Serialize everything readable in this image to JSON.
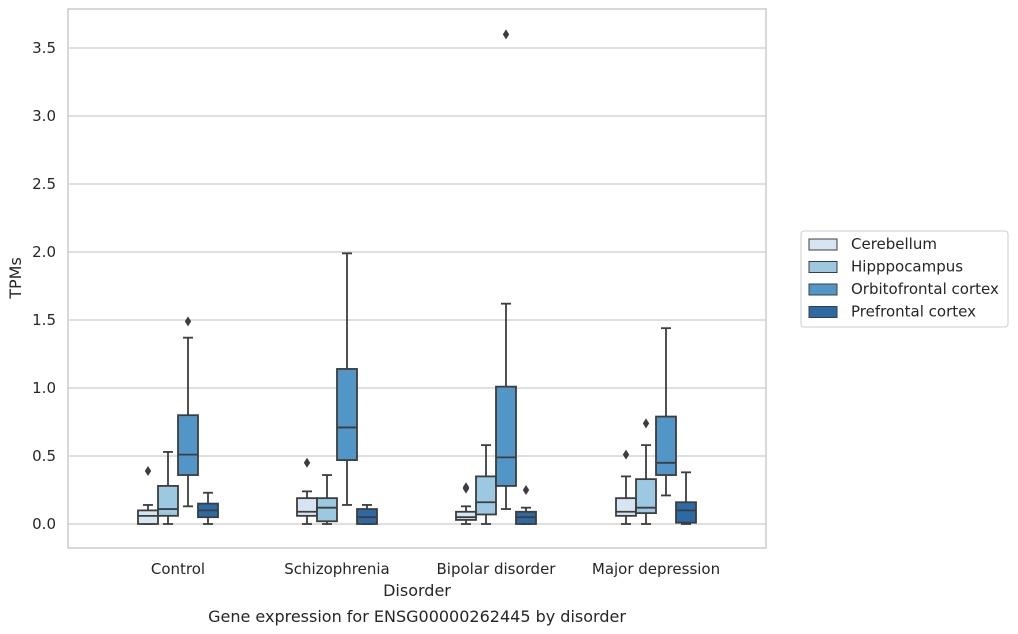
{
  "chart_data": {
    "type": "box",
    "caption": "Gene expression for ENSG00000262445 by disorder",
    "xlabel": "Disorder",
    "ylabel": "TPMs",
    "ylim": [
      -0.17,
      3.78
    ],
    "yticks": [
      "0.0",
      "0.5",
      "1.0",
      "1.5",
      "2.0",
      "2.5",
      "3.0",
      "3.5"
    ],
    "grid": "horizontal",
    "legend_position": "right",
    "categories": [
      "Control",
      "Schizophrenia",
      "Bipolar disorder",
      "Major depression"
    ],
    "series": [
      {
        "name": "Cerebellum",
        "color": "#d6e5f2",
        "boxes": [
          {
            "whisker_low": 0.0,
            "q1": 0.0,
            "median": 0.06,
            "q3": 0.1,
            "whisker_high": 0.14,
            "outliers": [
              0.39
            ]
          },
          {
            "whisker_low": 0.0,
            "q1": 0.06,
            "median": 0.09,
            "q3": 0.19,
            "whisker_high": 0.24,
            "outliers": [
              0.45
            ]
          },
          {
            "whisker_low": 0.0,
            "q1": 0.03,
            "median": 0.05,
            "q3": 0.09,
            "whisker_high": 0.13,
            "outliers": [
              0.26,
              0.27
            ]
          },
          {
            "whisker_low": 0.0,
            "q1": 0.06,
            "median": 0.09,
            "q3": 0.19,
            "whisker_high": 0.35,
            "outliers": [
              0.51
            ]
          }
        ]
      },
      {
        "name": "Hipppocampus",
        "color": "#9cc8e1",
        "boxes": [
          {
            "whisker_low": 0.0,
            "q1": 0.06,
            "median": 0.11,
            "q3": 0.28,
            "whisker_high": 0.53,
            "outliers": []
          },
          {
            "whisker_low": 0.0,
            "q1": 0.02,
            "median": 0.12,
            "q3": 0.19,
            "whisker_high": 0.36,
            "outliers": []
          },
          {
            "whisker_low": 0.0,
            "q1": 0.07,
            "median": 0.16,
            "q3": 0.35,
            "whisker_high": 0.58,
            "outliers": []
          },
          {
            "whisker_low": 0.0,
            "q1": 0.08,
            "median": 0.12,
            "q3": 0.33,
            "whisker_high": 0.58,
            "outliers": [
              0.74
            ]
          }
        ]
      },
      {
        "name": "Orbitofrontal cortex",
        "color": "#5296c7",
        "boxes": [
          {
            "whisker_low": 0.13,
            "q1": 0.36,
            "median": 0.51,
            "q3": 0.8,
            "whisker_high": 1.37,
            "outliers": [
              1.49
            ]
          },
          {
            "whisker_low": 0.14,
            "q1": 0.47,
            "median": 0.71,
            "q3": 1.14,
            "whisker_high": 1.99,
            "outliers": []
          },
          {
            "whisker_low": 0.11,
            "q1": 0.28,
            "median": 0.49,
            "q3": 1.01,
            "whisker_high": 1.62,
            "outliers": [
              3.6
            ]
          },
          {
            "whisker_low": 0.21,
            "q1": 0.36,
            "median": 0.45,
            "q3": 0.79,
            "whisker_high": 1.44,
            "outliers": []
          }
        ]
      },
      {
        "name": "Prefrontal cortex",
        "color": "#2c6aa6",
        "boxes": [
          {
            "whisker_low": 0.0,
            "q1": 0.05,
            "median": 0.1,
            "q3": 0.15,
            "whisker_high": 0.23,
            "outliers": []
          },
          {
            "whisker_low": 0.0,
            "q1": 0.0,
            "median": 0.05,
            "q3": 0.11,
            "whisker_high": 0.14,
            "outliers": []
          },
          {
            "whisker_low": 0.0,
            "q1": 0.0,
            "median": 0.05,
            "q3": 0.09,
            "whisker_high": 0.12,
            "outliers": [
              0.25
            ]
          },
          {
            "whisker_low": 0.0,
            "q1": 0.01,
            "median": 0.1,
            "q3": 0.16,
            "whisker_high": 0.38,
            "outliers": []
          }
        ]
      }
    ]
  }
}
